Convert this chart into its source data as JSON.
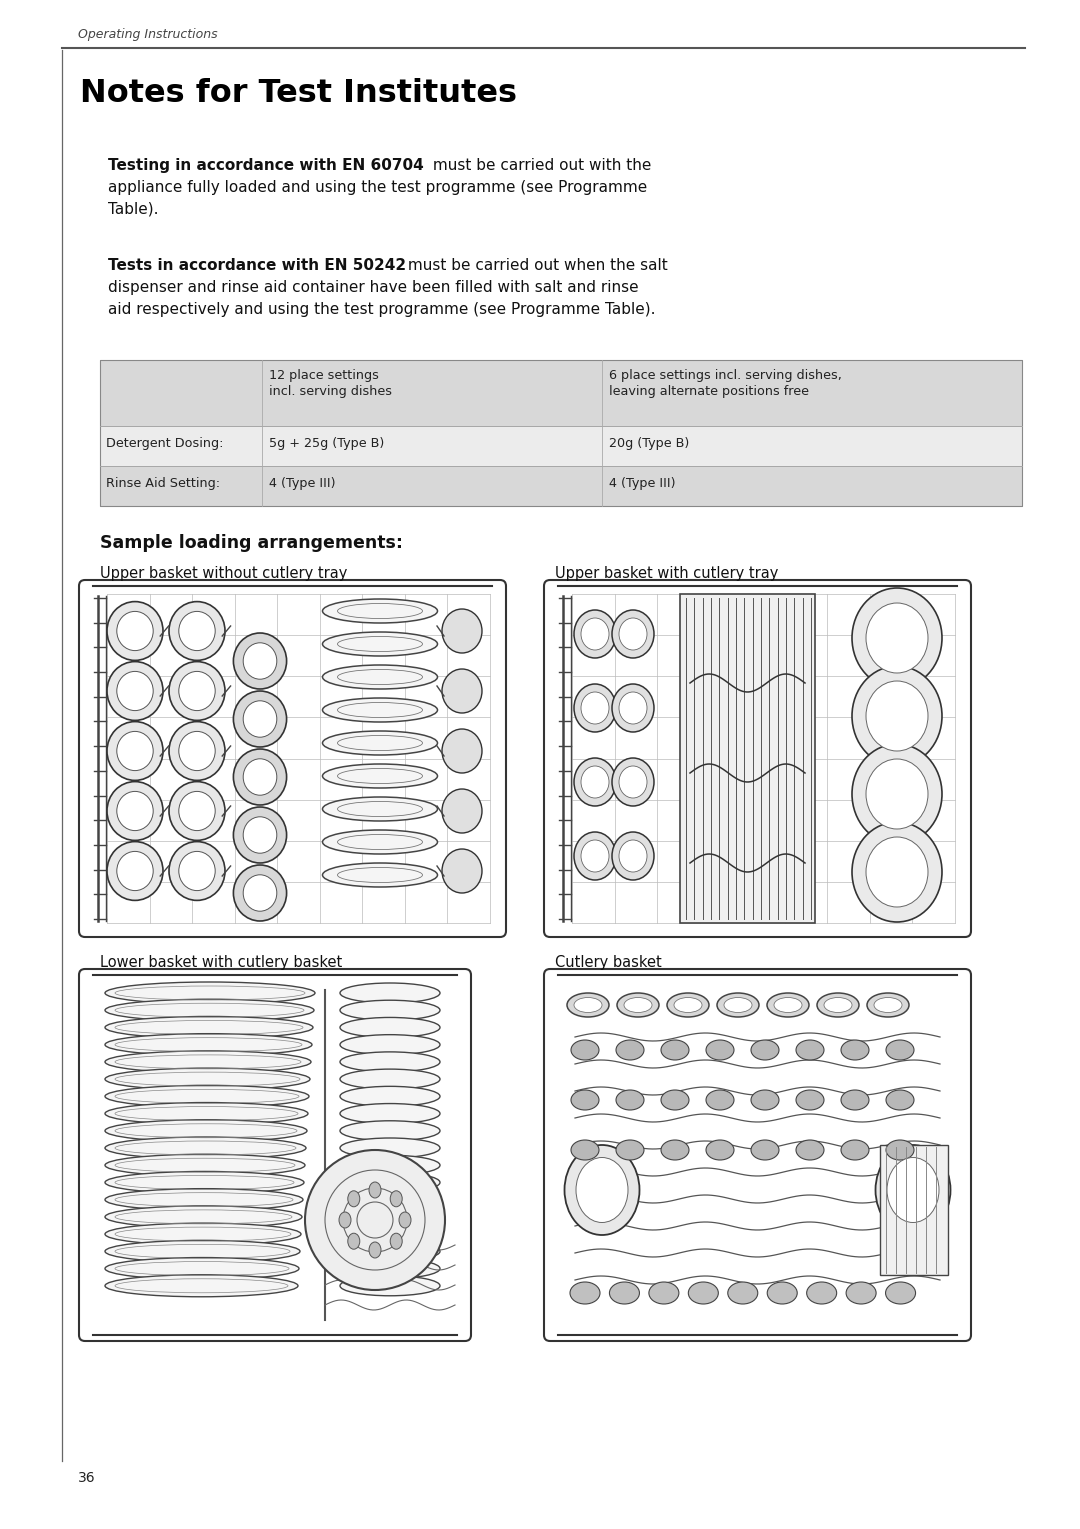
{
  "page_bg": "#ffffff",
  "header_text": "Operating Instructions",
  "title": "Notes for Test Institutes",
  "para1_bold": "Testing in accordance with EN 60704",
  "para1_rest": " must be carried out with the\nappliance fully loaded and using the test programme (see Programme\nTable).",
  "para2_bold": "Tests in accordance with EN 50242",
  "para2_rest": " must be carried out when the salt\ndispenser and rinse aid container have been filled with salt and\nrinse aid respectively and using the test programme (see Programme\nTable).",
  "table_header_bg": "#d8d8d8",
  "table_row1_bg": "#ececec",
  "table_row2_bg": "#d8d8d8",
  "table_col2_header_l1": "12 place settings",
  "table_col2_header_l2": "incl. serving dishes",
  "table_col3_header_l1": "6 place settings incl. serving dishes,",
  "table_col3_header_l2": "leaving alternate positions free",
  "table_row1_label": "Detergent Dosing:",
  "table_row1_col2": "5g + 25g (Type B)",
  "table_row1_col3": "20g (Type B)",
  "table_row2_label": "Rinse Aid Setting:",
  "table_row2_col2": "4 (Type III)",
  "table_row2_col3": "4 (Type III)",
  "section_title": "Sample loading arrangements:",
  "img1_label": "Upper basket without cutlery tray",
  "img2_label": "Upper basket with cutlery tray",
  "img3_label": "Lower basket with cutlery basket",
  "img4_label": "Cutlery basket",
  "page_num": "36",
  "dark": "#111111",
  "mid": "#555555",
  "light": "#aaaaaa",
  "gray_fill": "#c0c0c0",
  "light_fill": "#e8e8e8",
  "white": "#ffffff"
}
